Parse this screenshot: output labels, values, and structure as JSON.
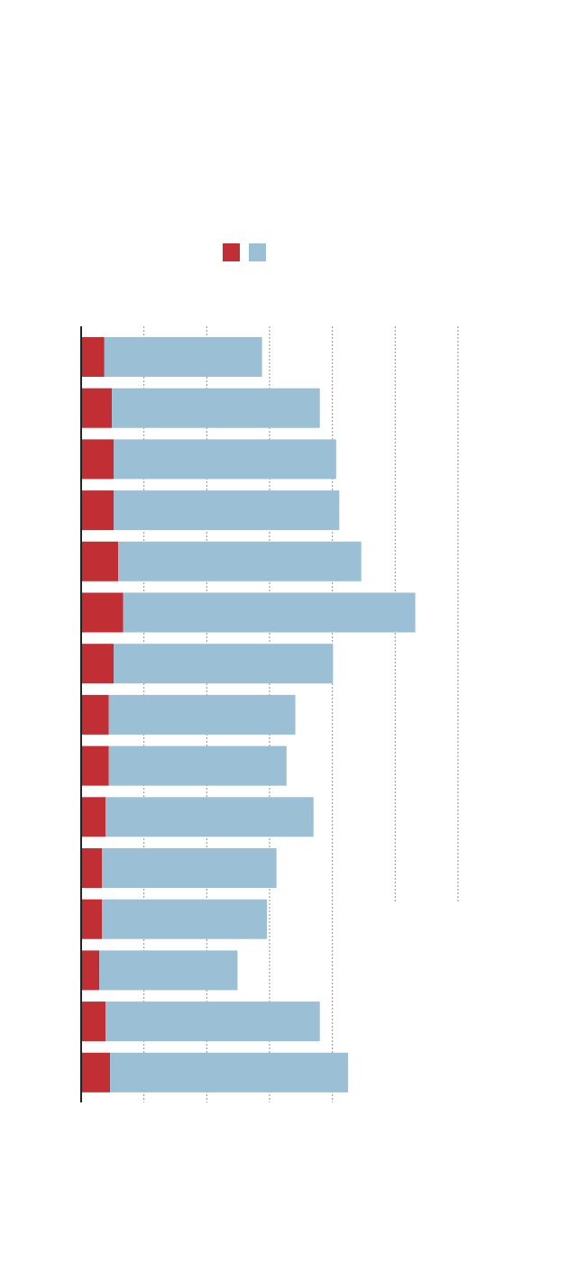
{
  "chart_data": {
    "type": "bar",
    "orientation": "horizontal",
    "stacked": true,
    "title": "",
    "xlabel": "",
    "ylabel": "",
    "xlim": [
      0,
      6
    ],
    "grid": true,
    "legend_placement": "top-center",
    "categories": [
      "",
      "",
      "",
      "",
      "",
      "",
      "",
      "",
      "",
      "",
      "",
      "",
      "",
      "",
      ""
    ],
    "series": [
      {
        "name": "",
        "color": "#c12f35",
        "values": [
          0.37,
          0.49,
          0.52,
          0.52,
          0.59,
          0.67,
          0.52,
          0.44,
          0.44,
          0.39,
          0.33,
          0.33,
          0.29,
          0.39,
          0.46
        ]
      },
      {
        "name": "",
        "color": "#9bbfd5",
        "values": [
          2.51,
          3.31,
          3.54,
          3.59,
          3.87,
          4.65,
          3.49,
          2.97,
          2.83,
          3.31,
          2.78,
          2.63,
          2.2,
          3.41,
          3.79
        ]
      }
    ],
    "gridlines": [
      1,
      2,
      3,
      4,
      5,
      6
    ]
  }
}
